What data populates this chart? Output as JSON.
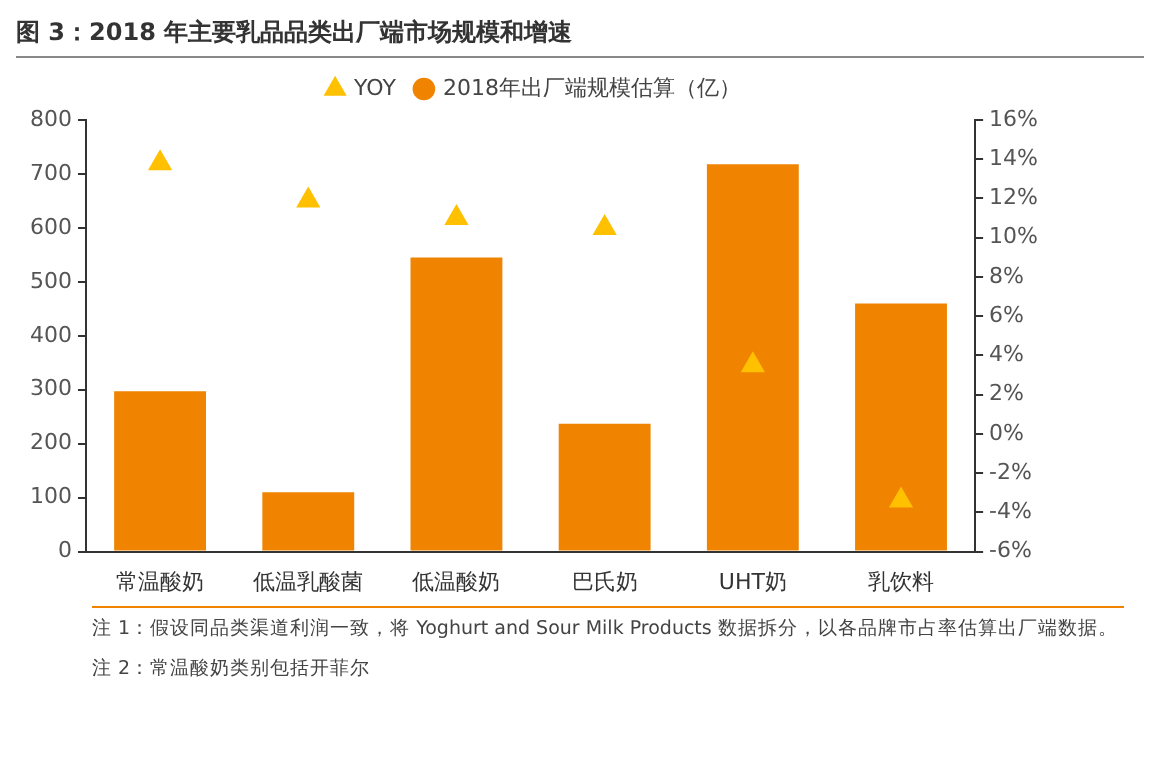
{
  "chart_data": {
    "type": "bar",
    "title": "图 3：2018 年主要乳品品类出厂端市场规模和增速",
    "categories": [
      "常温酸奶",
      "低温乳酸菌",
      "低温酸奶",
      "巴氏奶",
      "UHT奶",
      "乳饮料"
    ],
    "series": [
      {
        "name": "2018年出厂端规模估算（亿）",
        "color": "#f08300",
        "values": [
          297,
          110,
          545,
          237,
          718,
          460
        ]
      },
      {
        "name": "YOY",
        "type": "scatter",
        "axis": "y2",
        "marker": "triangle",
        "color": "#ffc000",
        "values": [
          13.8,
          11.9,
          11.0,
          10.5,
          3.5,
          -3.4
        ]
      }
    ],
    "ylim": [
      0,
      800
    ],
    "yticks": [
      0,
      100,
      200,
      300,
      400,
      500,
      600,
      700,
      800
    ],
    "y2lim": [
      -6,
      16
    ],
    "y2ticks": [
      {
        "value": -6,
        "label": "-6%"
      },
      {
        "value": -4,
        "label": "-4%"
      },
      {
        "value": -2,
        "label": "-2%"
      },
      {
        "value": 0,
        "label": "0%"
      },
      {
        "value": 2,
        "label": "2%"
      },
      {
        "value": 4,
        "label": "4%"
      },
      {
        "value": 6,
        "label": "6%"
      },
      {
        "value": 8,
        "label": "8%"
      },
      {
        "value": 10,
        "label": "10%"
      },
      {
        "value": 12,
        "label": "12%"
      },
      {
        "value": 14,
        "label": "14%"
      },
      {
        "value": 16,
        "label": "16%"
      }
    ],
    "legend": "top",
    "grid": false,
    "annotations": [
      "注 1：假设同品类渠道利润一致，将 Yoghurt and Sour Milk Products 数据拆分，以各品牌市占率估算出厂端数据。",
      "注 2：常温酸奶类别包括开菲尔"
    ]
  }
}
